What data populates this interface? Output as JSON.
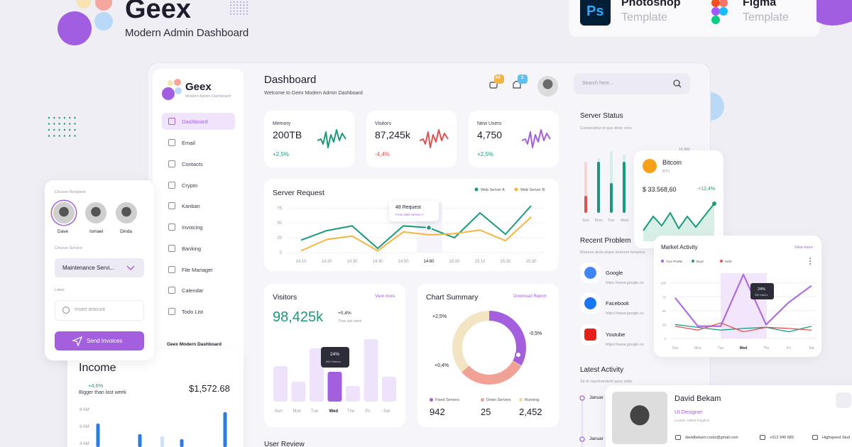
{
  "brand": {
    "title": "Geex",
    "subtitle": "Modern Admin Dashboard"
  },
  "templates": [
    {
      "icon": "Ps",
      "name": "Photoshop",
      "label": "Template"
    },
    {
      "name": "Figma",
      "label": "Template"
    }
  ],
  "sidebar": {
    "logo": "Geex",
    "tagline": "Modern Admin Dashboard",
    "nav": [
      "Dashboard",
      "Email",
      "Contacts",
      "Crypto",
      "Kanban",
      "Invoicing",
      "Banking",
      "File Manager",
      "Calendar",
      "Todo List"
    ],
    "footer": "Geex Modern Dashboard"
  },
  "header": {
    "title": "Dashboard",
    "subtitle": "Welcome to Geex Modern Admin Dashboard",
    "badges": [
      "04",
      "2"
    ],
    "search": "Search here..."
  },
  "stats": [
    {
      "label": "Memory",
      "value": "200TB",
      "change": "+2,5%"
    },
    {
      "label": "Visitors",
      "value": "87,245k",
      "change": "-4,4%"
    },
    {
      "label": "New Users",
      "value": "4,750",
      "change": "+2,5%"
    }
  ],
  "server_request": {
    "title": "Server Request",
    "ylim": [
      0,
      85
    ],
    "yticks": [
      0,
      25,
      50,
      75
    ],
    "xticks": [
      "14:10",
      "14:20",
      "14:30",
      "14:40",
      "14:50",
      "14:60",
      "15:00",
      "15:10",
      "15:20",
      "15:30"
    ],
    "series": [
      {
        "name": "Web Server A",
        "color": "#1a9a7d",
        "values": [
          21,
          37,
          45,
          7,
          45,
          42,
          25,
          67,
          31,
          79
        ]
      },
      {
        "name": "Web Server B",
        "color": "#f5b53f",
        "values": [
          3,
          22,
          28,
          3,
          35,
          30,
          32,
          38,
          20,
          60
        ]
      }
    ],
    "tooltip": {
      "title": "48 Request",
      "subtitle": "From Web Server A"
    }
  },
  "visitors": {
    "title": "Visitors",
    "link": "View more",
    "total": "98,425k",
    "change": "+0,4%",
    "note": "Than last week",
    "tooltip": {
      "value": "24%",
      "subtitle": "980 Visitors"
    },
    "days": [
      "Sun",
      "Mon",
      "Tue",
      "Wed",
      "Thu",
      "Fri",
      "Sat"
    ]
  },
  "chart_summary": {
    "title": "Chart Summary",
    "link": "Download Report",
    "labels": [
      "+2,5%",
      "-0,5%",
      "+0,4%"
    ],
    "legend": [
      {
        "name": "Fixed Servers",
        "value": "942"
      },
      {
        "name": "Down Servers",
        "value": "25"
      },
      {
        "name": "Running",
        "value": "2,452"
      }
    ]
  },
  "server_status": {
    "title": "Server Status",
    "subtitle": "Consectetur et quo dolor vero.",
    "time": "10 AM",
    "days": [
      "Sun",
      "Mon",
      "Tue",
      "Wed"
    ]
  },
  "bitcoin": {
    "name": "Bitcoin",
    "symbol": "BTC",
    "price": "$ 33.568,60",
    "change": "+12,4%"
  },
  "recent_problem": {
    "title": "Recent Problem",
    "subtitle": "Maiores dicta atque dolorem tempora",
    "items": [
      {
        "name": "Google",
        "url": "https://www.google.co"
      },
      {
        "name": "Facebook",
        "url": "https://www.google.co"
      },
      {
        "name": "Youtube",
        "url": "https://www.google.co"
      }
    ]
  },
  "market_activity": {
    "title": "Market Activity",
    "link": "View more",
    "ylim": [
      0,
      120
    ],
    "yticks": [
      0,
      25,
      50,
      75,
      100
    ],
    "days": [
      "Sun",
      "Mon",
      "Tue",
      "Wed",
      "Thu",
      "Fri",
      "Sat"
    ],
    "series": [
      {
        "name": "Your Profits",
        "color": "#a35fde",
        "values": [
          73,
          22,
          22,
          115,
          25,
          65,
          95
        ]
      },
      {
        "name": "Buys",
        "color": "#1a9a7d",
        "values": [
          25,
          20,
          15,
          18,
          20,
          12,
          22
        ]
      },
      {
        "name": "Sells",
        "color": "#e15151",
        "values": [
          22,
          15,
          28,
          12,
          20,
          18,
          15
        ]
      }
    ],
    "tooltip": {
      "value": "24%",
      "subtitle": "980 Visitors"
    }
  },
  "latest_activity": {
    "title": "Latest Activity",
    "subtitle": "Sit et reprehenderit quos dolor",
    "items": [
      "Januar",
      "Januar"
    ]
  },
  "profile": {
    "name": "David Bekam",
    "role": "UI Designer",
    "location": "London, United Kingdom",
    "email": "davidbekam.coolz@gmail.com",
    "phone": "+012 345 689",
    "company": "Highspeed Stud"
  },
  "invoice": {
    "recipient_label": "Choose Recipient",
    "recipients": [
      "Dave",
      "Ismael",
      "Dinda"
    ],
    "service_label": "Choose Service",
    "service": "Maintenance Servi...",
    "label": "Label",
    "placeholder": "Insert amount",
    "button": "Send Invoices"
  },
  "income": {
    "title": "Income",
    "change": "+4,6%",
    "note": "Bigger than last week",
    "amount": "$1,572.68",
    "yticks": [
      "8 AM",
      "6 AM",
      "4 AM"
    ]
  },
  "user_review": "User Review"
}
